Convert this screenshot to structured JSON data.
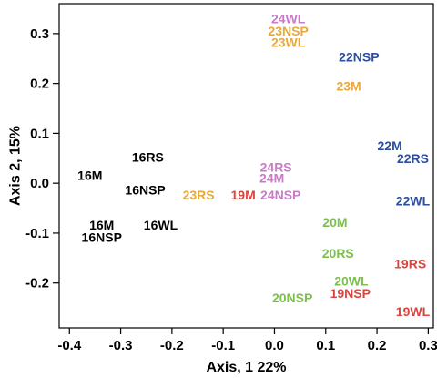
{
  "chart_data": {
    "type": "scatter",
    "title": "",
    "xlabel": "Axis, 1 22%",
    "ylabel": "Axis 2, 15%",
    "xlim": [
      -0.42,
      0.31
    ],
    "ylim": [
      -0.29,
      0.36
    ],
    "x_ticks": [
      -0.4,
      -0.3,
      -0.2,
      -0.1,
      0.0,
      0.1,
      0.2,
      0.3
    ],
    "x_tick_labels": [
      "-0.4",
      "-0.3",
      "-0.2",
      "-0.1",
      "0.0",
      "0.1",
      "0.2",
      "0.3"
    ],
    "y_ticks": [
      -0.2,
      -0.1,
      0.0,
      0.1,
      0.2,
      0.3
    ],
    "y_tick_labels": [
      "-0.2",
      "-0.1",
      "0.0",
      "0.1",
      "0.2",
      "0.3"
    ],
    "grid": false,
    "legend": "none",
    "points": [
      {
        "label": "24WL",
        "x": 0.027,
        "y": 0.33,
        "color": "#c87bc6"
      },
      {
        "label": "23NSP",
        "x": 0.027,
        "y": 0.305,
        "color": "#e8a93c"
      },
      {
        "label": "23WL",
        "x": 0.027,
        "y": 0.282,
        "color": "#e8a93c"
      },
      {
        "label": "22NSP",
        "x": 0.165,
        "y": 0.253,
        "color": "#2c4e9e"
      },
      {
        "label": "23M",
        "x": 0.145,
        "y": 0.195,
        "color": "#e8a93c"
      },
      {
        "label": "22M",
        "x": 0.225,
        "y": 0.075,
        "color": "#2c4e9e"
      },
      {
        "label": "22RS",
        "x": 0.27,
        "y": 0.05,
        "color": "#2c4e9e"
      },
      {
        "label": "16RS",
        "x": -0.247,
        "y": 0.052,
        "color": "#000000"
      },
      {
        "label": "16M",
        "x": -0.36,
        "y": 0.016,
        "color": "#000000"
      },
      {
        "label": "16NSP",
        "x": -0.252,
        "y": -0.013,
        "color": "#000000"
      },
      {
        "label": "24RS",
        "x": 0.003,
        "y": 0.032,
        "color": "#c87bc6"
      },
      {
        "label": "24M",
        "x": -0.005,
        "y": 0.01,
        "color": "#c87bc6"
      },
      {
        "label": "23RS",
        "x": -0.148,
        "y": -0.023,
        "color": "#e8a93c"
      },
      {
        "label": "19M",
        "x": -0.061,
        "y": -0.023,
        "color": "#d9453d"
      },
      {
        "label": "24NSP",
        "x": 0.012,
        "y": -0.023,
        "color": "#c87bc6"
      },
      {
        "label": "22WL",
        "x": 0.27,
        "y": -0.035,
        "color": "#2c4e9e"
      },
      {
        "label": "20M",
        "x": 0.118,
        "y": -0.078,
        "color": "#7dbf4d"
      },
      {
        "label": "16M",
        "x": -0.337,
        "y": -0.084,
        "color": "#000000"
      },
      {
        "label": "16WL",
        "x": -0.222,
        "y": -0.084,
        "color": "#000000"
      },
      {
        "label": "16NSP",
        "x": -0.337,
        "y": -0.108,
        "color": "#000000"
      },
      {
        "label": "20RS",
        "x": 0.124,
        "y": -0.14,
        "color": "#7dbf4d"
      },
      {
        "label": "19RS",
        "x": 0.265,
        "y": -0.161,
        "color": "#d9453d"
      },
      {
        "label": "20WL",
        "x": 0.15,
        "y": -0.196,
        "color": "#7dbf4d"
      },
      {
        "label": "19NSP",
        "x": 0.148,
        "y": -0.221,
        "color": "#d9453d"
      },
      {
        "label": "20NSP",
        "x": 0.035,
        "y": -0.23,
        "color": "#7dbf4d"
      },
      {
        "label": "19WL",
        "x": 0.27,
        "y": -0.257,
        "color": "#d9453d"
      }
    ]
  }
}
